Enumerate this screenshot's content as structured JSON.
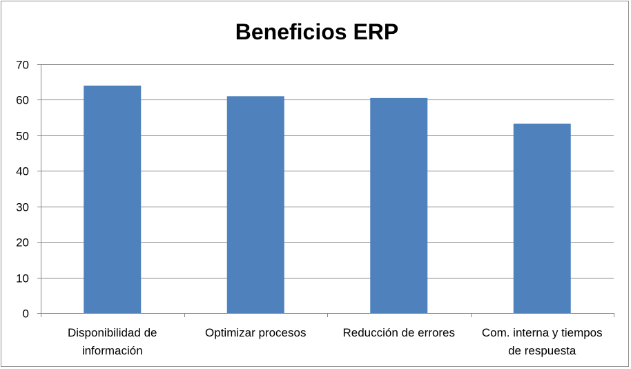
{
  "chart_data": {
    "type": "bar",
    "title": "Beneficios ERP",
    "categories": [
      [
        "Disponibilidad de",
        "información"
      ],
      [
        "Optimizar procesos"
      ],
      [
        "Reducción de errores"
      ],
      [
        "Com. interna y tiempos",
        "de respuesta"
      ]
    ],
    "values": [
      64,
      61,
      60.5,
      53.3
    ],
    "ylim": [
      0,
      70
    ],
    "yticks": [
      0,
      10,
      20,
      30,
      40,
      50,
      60,
      70
    ],
    "grid": true,
    "legend": false,
    "xlabel": "",
    "ylabel": "",
    "colors": {
      "bar": "#4f81bd",
      "grid": "#868686",
      "axis": "#868686",
      "frame": "#8c8c8c"
    }
  }
}
